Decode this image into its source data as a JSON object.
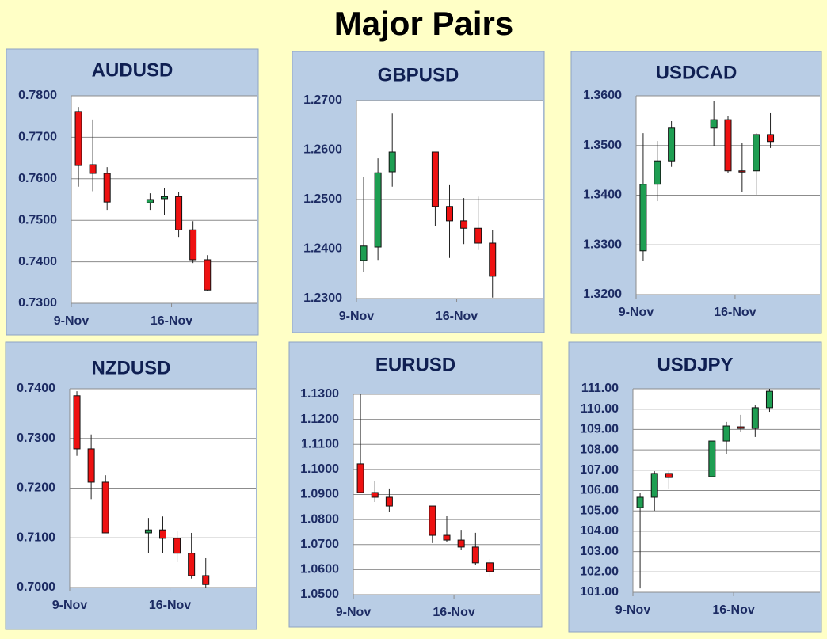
{
  "title": "Major Pairs",
  "chart_data": [
    {
      "type": "candlestick",
      "title": "AUDUSD",
      "x": [
        9,
        10,
        11,
        14,
        15,
        16,
        17,
        18
      ],
      "xlim": [
        9,
        22
      ],
      "xticks": [
        {
          "value": 9,
          "label": "9-Nov"
        },
        {
          "value": 16,
          "label": "16-Nov"
        }
      ],
      "open": [
        0.7762,
        0.7634,
        0.7613,
        0.7542,
        0.7552,
        0.7557,
        0.7477,
        0.7405
      ],
      "high": [
        0.7773,
        0.7743,
        0.7628,
        0.7565,
        0.7578,
        0.7569,
        0.7498,
        0.7416
      ],
      "low": [
        0.7581,
        0.757,
        0.7525,
        0.7525,
        0.7512,
        0.746,
        0.7397,
        0.7329
      ],
      "close": [
        0.7632,
        0.7613,
        0.7544,
        0.755,
        0.7557,
        0.7477,
        0.7405,
        0.7332
      ],
      "up_color": "#1e9e52",
      "down_color": "#ee1111",
      "ylim": [
        0.73,
        0.78
      ],
      "yticks": [
        {
          "value": 0.73,
          "label": "0.7300"
        },
        {
          "value": 0.74,
          "label": "0.7400"
        },
        {
          "value": 0.75,
          "label": "0.7500"
        },
        {
          "value": 0.76,
          "label": "0.7600"
        },
        {
          "value": 0.77,
          "label": "0.7700"
        },
        {
          "value": 0.78,
          "label": "0.7800"
        }
      ],
      "grid": true
    },
    {
      "type": "candlestick",
      "title": "GBPUSD",
      "x": [
        9,
        10,
        11,
        14,
        15,
        16,
        17,
        18
      ],
      "xlim": [
        9,
        22
      ],
      "xticks": [
        {
          "value": 9,
          "label": "9-Nov"
        },
        {
          "value": 16,
          "label": "16-Nov"
        }
      ],
      "open": [
        1.2377,
        1.2404,
        1.2556,
        1.2596,
        1.2486,
        1.2457,
        1.2442,
        1.2412
      ],
      "high": [
        1.2546,
        1.2583,
        1.2674,
        1.2596,
        1.2529,
        1.2503,
        1.2506,
        1.2438
      ],
      "low": [
        1.2353,
        1.2378,
        1.2526,
        1.2446,
        1.2382,
        1.241,
        1.2398,
        1.2302
      ],
      "close": [
        1.2406,
        1.2554,
        1.2596,
        1.2486,
        1.2457,
        1.2442,
        1.2412,
        1.2345
      ],
      "up_color": "#1e9e52",
      "down_color": "#ee1111",
      "ylim": [
        1.23,
        1.27
      ],
      "yticks": [
        {
          "value": 1.23,
          "label": "1.2300"
        },
        {
          "value": 1.24,
          "label": "1.2400"
        },
        {
          "value": 1.25,
          "label": "1.2500"
        },
        {
          "value": 1.26,
          "label": "1.2600"
        },
        {
          "value": 1.27,
          "label": "1.2700"
        }
      ],
      "grid": true
    },
    {
      "type": "candlestick",
      "title": "USDCAD",
      "x": [
        9,
        10,
        11,
        14,
        15,
        16,
        17,
        18
      ],
      "xlim": [
        9,
        22
      ],
      "xticks": [
        {
          "value": 9,
          "label": "9-Nov"
        },
        {
          "value": 16,
          "label": "16-Nov"
        }
      ],
      "open": [
        1.3288,
        1.3422,
        1.3469,
        1.3535,
        1.3552,
        1.3449,
        1.3449,
        1.3522
      ],
      "high": [
        1.3525,
        1.3509,
        1.3549,
        1.3589,
        1.356,
        1.3506,
        1.3525,
        1.3565
      ],
      "low": [
        1.3267,
        1.3388,
        1.3457,
        1.3498,
        1.3445,
        1.3407,
        1.3401,
        1.3495
      ],
      "close": [
        1.3422,
        1.3469,
        1.3535,
        1.3552,
        1.3449,
        1.3448,
        1.3522,
        1.3508
      ],
      "up_color": "#1e9e52",
      "down_color": "#ee1111",
      "ylim": [
        1.32,
        1.36
      ],
      "yticks": [
        {
          "value": 1.32,
          "label": "1.3200"
        },
        {
          "value": 1.33,
          "label": "1.3300"
        },
        {
          "value": 1.34,
          "label": "1.3400"
        },
        {
          "value": 1.35,
          "label": "1.3500"
        },
        {
          "value": 1.36,
          "label": "1.3600"
        }
      ],
      "grid": true
    },
    {
      "type": "candlestick",
      "title": "NZDUSD",
      "x": [
        9,
        10,
        11,
        14,
        15,
        16,
        17,
        18
      ],
      "xlim": [
        9,
        22
      ],
      "xticks": [
        {
          "value": 9,
          "label": "9-Nov"
        },
        {
          "value": 16,
          "label": "16-Nov"
        }
      ],
      "open": [
        0.7386,
        0.7279,
        0.7212,
        0.711,
        0.7116,
        0.7099,
        0.7069,
        0.7024
      ],
      "high": [
        0.7395,
        0.7308,
        0.7226,
        0.714,
        0.7143,
        0.7113,
        0.711,
        0.7059
      ],
      "low": [
        0.7265,
        0.7178,
        0.711,
        0.707,
        0.707,
        0.7051,
        0.7018,
        0.7
      ],
      "close": [
        0.7279,
        0.7212,
        0.711,
        0.7116,
        0.7099,
        0.7069,
        0.7024,
        0.7006
      ],
      "up_color": "#1e9e52",
      "down_color": "#ee1111",
      "ylim": [
        0.7,
        0.74
      ],
      "yticks": [
        {
          "value": 0.7,
          "label": "0.7000"
        },
        {
          "value": 0.71,
          "label": "0.7100"
        },
        {
          "value": 0.72,
          "label": "0.7200"
        },
        {
          "value": 0.73,
          "label": "0.7300"
        },
        {
          "value": 0.74,
          "label": "0.7400"
        }
      ],
      "grid": true
    },
    {
      "type": "candlestick",
      "title": "EURUSD",
      "x": [
        9,
        10,
        11,
        14,
        15,
        16,
        17,
        18
      ],
      "xlim": [
        9,
        22
      ],
      "xticks": [
        {
          "value": 9,
          "label": "9-Nov"
        },
        {
          "value": 16,
          "label": "16-Nov"
        }
      ],
      "open": [
        1.1022,
        1.0908,
        1.0889,
        1.0854,
        1.0737,
        1.0718,
        1.069,
        1.0627
      ],
      "high": [
        1.13,
        1.0953,
        1.0924,
        1.0854,
        1.0813,
        1.0759,
        1.0747,
        1.0642
      ],
      "low": [
        1.0908,
        1.087,
        1.0832,
        1.0706,
        1.0712,
        1.068,
        1.0617,
        1.057
      ],
      "close": [
        1.0908,
        1.0889,
        1.0854,
        1.0737,
        1.0718,
        1.069,
        1.0627,
        1.0592
      ],
      "up_color": "#1e9e52",
      "down_color": "#ee1111",
      "ylim": [
        1.05,
        1.13
      ],
      "yticks": [
        {
          "value": 1.05,
          "label": "1.0500"
        },
        {
          "value": 1.06,
          "label": "1.0600"
        },
        {
          "value": 1.07,
          "label": "1.0700"
        },
        {
          "value": 1.08,
          "label": "1.0800"
        },
        {
          "value": 1.09,
          "label": "1.0900"
        },
        {
          "value": 1.1,
          "label": "1.1000"
        },
        {
          "value": 1.11,
          "label": "1.1100"
        },
        {
          "value": 1.12,
          "label": "1.1200"
        },
        {
          "value": 1.13,
          "label": "1.1300"
        }
      ],
      "grid": true
    },
    {
      "type": "candlestick",
      "title": "USDJPY",
      "x": [
        9,
        10,
        11,
        14,
        15,
        16,
        17,
        18
      ],
      "xlim": [
        9,
        22
      ],
      "xticks": [
        {
          "value": 9,
          "label": "9-Nov"
        },
        {
          "value": 16,
          "label": "16-Nov"
        }
      ],
      "open": [
        105.16,
        105.67,
        106.84,
        106.68,
        108.43,
        109.13,
        109.05,
        110.07
      ],
      "high": [
        105.9,
        106.95,
        106.95,
        108.43,
        109.37,
        109.72,
        110.18,
        111.0
      ],
      "low": [
        101.19,
        105.01,
        106.1,
        106.68,
        107.81,
        108.87,
        108.63,
        109.87
      ],
      "close": [
        105.67,
        106.84,
        106.64,
        108.43,
        109.17,
        109.05,
        110.07,
        110.88
      ],
      "up_color": "#1e9e52",
      "down_color": "#ee1111",
      "ylim": [
        101,
        111
      ],
      "yticks": [
        {
          "value": 101,
          "label": "101.00"
        },
        {
          "value": 102,
          "label": "102.00"
        },
        {
          "value": 103,
          "label": "103.00"
        },
        {
          "value": 104,
          "label": "104.00"
        },
        {
          "value": 105,
          "label": "105.00"
        },
        {
          "value": 106,
          "label": "106.00"
        },
        {
          "value": 107,
          "label": "107.00"
        },
        {
          "value": 108,
          "label": "108.00"
        },
        {
          "value": 109,
          "label": "109.00"
        },
        {
          "value": 110,
          "label": "110.00"
        },
        {
          "value": 111,
          "label": "111.00"
        }
      ],
      "grid": true
    }
  ]
}
